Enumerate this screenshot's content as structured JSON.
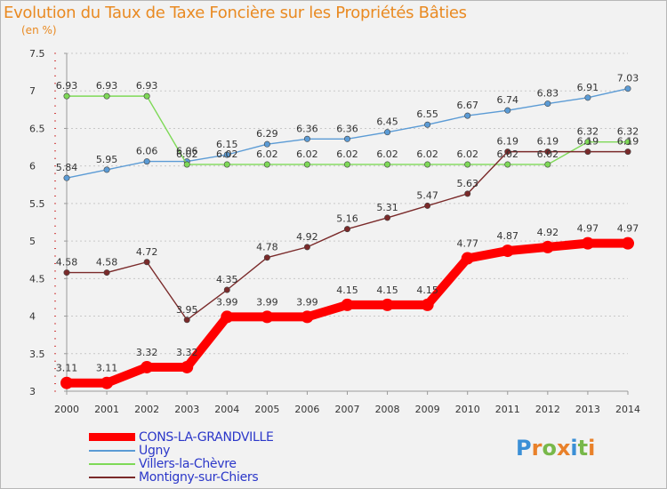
{
  "chart_data": {
    "type": "line",
    "title": "Evolution du Taux de Taxe Foncière sur les Propriétés Bâties",
    "ylabel": "(en %)",
    "xlabel": "",
    "x": [
      2000,
      2001,
      2002,
      2003,
      2004,
      2005,
      2006,
      2007,
      2008,
      2009,
      2010,
      2011,
      2012,
      2013,
      2014
    ],
    "ylim": [
      3,
      7.5
    ],
    "yticks": [
      "3",
      "3.5",
      "4",
      "4.5",
      "5",
      "5.5",
      "6",
      "6.5",
      "7",
      "7.5"
    ],
    "grid": "horizontal dotted",
    "legend_position": "bottom-left",
    "series": [
      {
        "name": "Ugny",
        "color": "#5b9bd5",
        "values": [
          5.84,
          5.95,
          6.06,
          6.06,
          6.15,
          6.29,
          6.36,
          6.36,
          6.45,
          6.55,
          6.67,
          6.74,
          6.83,
          6.91,
          7.03
        ],
        "labels": [
          "5.84",
          "5.95",
          "6.06",
          "6.06",
          "6.15",
          "6.29",
          "6.36",
          "6.36",
          "6.45",
          "6.55",
          "6.67",
          "6.74",
          "6.83",
          "6.91",
          "7.03"
        ]
      },
      {
        "name": "Villers-la-Chèvre",
        "color": "#7ed957",
        "values": [
          6.93,
          6.93,
          6.93,
          6.02,
          6.02,
          6.02,
          6.02,
          6.02,
          6.02,
          6.02,
          6.02,
          6.02,
          6.02,
          6.32,
          6.32
        ],
        "labels": [
          "6.93",
          "6.93",
          "6.93",
          "6.02",
          "6.02",
          "6.02",
          "6.02",
          "6.02",
          "6.02",
          "6.02",
          "6.02",
          "6.02",
          "6.02",
          "6.32",
          "6.32"
        ]
      },
      {
        "name": "Montigny-sur-Chiers",
        "color": "#7a2a2a",
        "values": [
          4.58,
          4.58,
          4.72,
          3.95,
          4.35,
          4.78,
          4.92,
          5.16,
          5.31,
          5.47,
          5.63,
          6.19,
          6.19,
          6.19,
          6.19
        ],
        "labels": [
          "4.58",
          "4.58",
          "4.72",
          "3.95",
          "4.35",
          "4.78",
          "4.92",
          "5.16",
          "5.31",
          "5.47",
          "5.63",
          "6.19",
          "6.19",
          "6.19",
          "6.19"
        ]
      },
      {
        "name": "CONS-LA-GRANDVILLE",
        "color": "#ff0000",
        "values": [
          3.11,
          3.11,
          3.32,
          3.32,
          3.99,
          3.99,
          3.99,
          4.15,
          4.15,
          4.15,
          4.77,
          4.87,
          4.92,
          4.97,
          4.97
        ],
        "labels": [
          "3.11",
          "3.11",
          "3.32",
          "3.32",
          "3.99",
          "3.99",
          "3.99",
          "4.15",
          "4.15",
          "4.15",
          "4.77",
          "4.87",
          "4.92",
          "4.97",
          "4.97"
        ]
      }
    ],
    "legend": [
      {
        "name": "CONS-LA-GRANDVILLE",
        "color": "#ff0000",
        "weight": "thick"
      },
      {
        "name": "Ugny",
        "color": "#5b9bd5",
        "weight": "thin"
      },
      {
        "name": "Villers-la-Chèvre",
        "color": "#7ed957",
        "weight": "thin"
      },
      {
        "name": "Montigny-sur-Chiers",
        "color": "#7a2a2a",
        "weight": "thin"
      }
    ]
  },
  "logo": {
    "letters": [
      "P",
      "r",
      "o",
      "x",
      "i",
      "t",
      "i"
    ],
    "colors": [
      "#3b8fd6",
      "#e9812a",
      "#78b84a",
      "#e9812a",
      "#3b8fd6",
      "#78b84a",
      "#e9812a"
    ]
  }
}
